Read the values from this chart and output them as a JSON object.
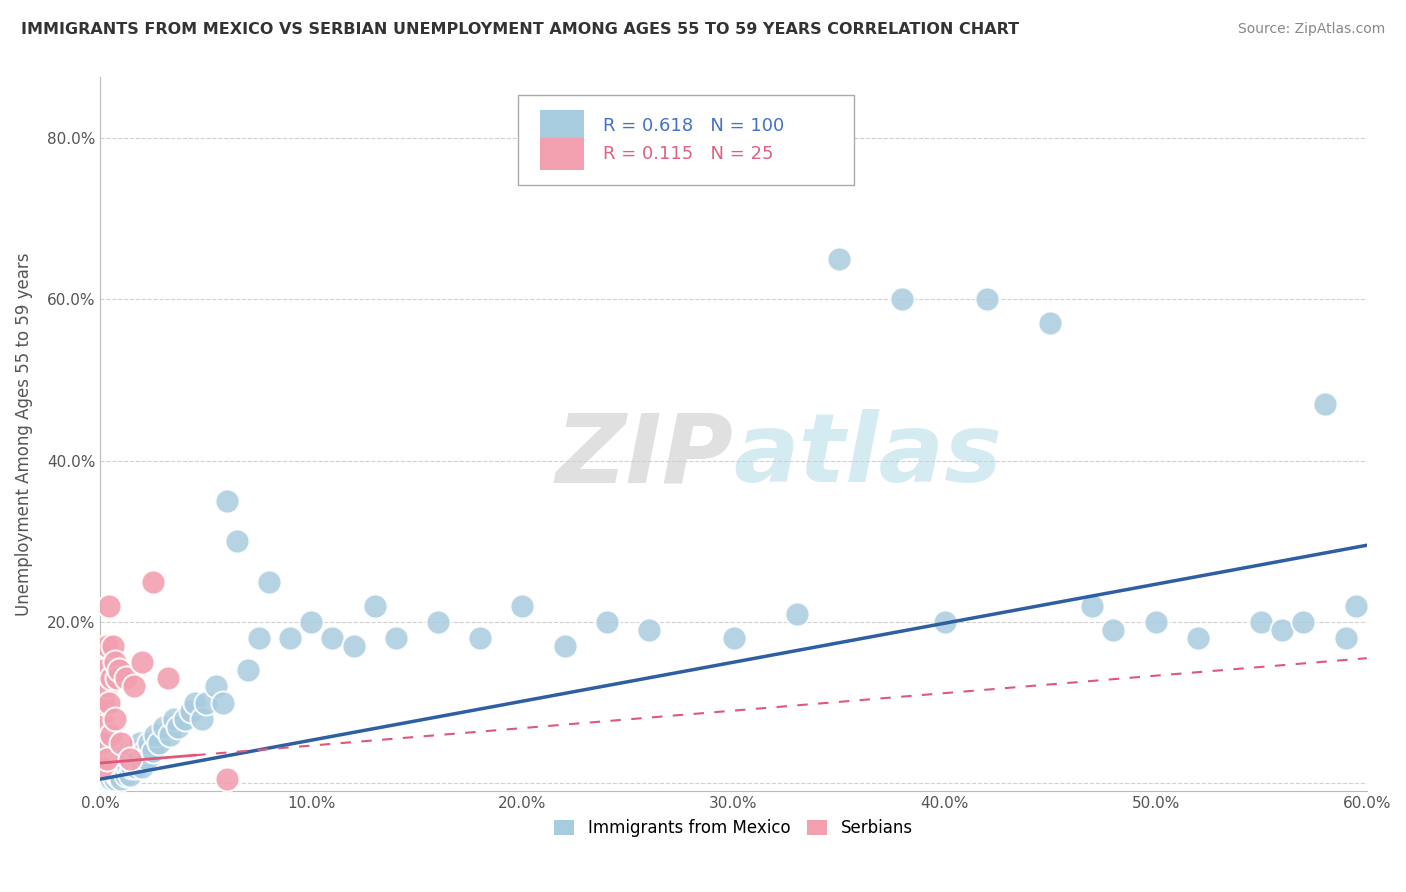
{
  "title": "IMMIGRANTS FROM MEXICO VS SERBIAN UNEMPLOYMENT AMONG AGES 55 TO 59 YEARS CORRELATION CHART",
  "source": "Source: ZipAtlas.com",
  "ylabel": "Unemployment Among Ages 55 to 59 years",
  "legend_label1": "Immigrants from Mexico",
  "legend_label2": "Serbians",
  "R1": 0.618,
  "N1": 100,
  "R2": 0.115,
  "N2": 25,
  "xlim": [
    0.0,
    0.6
  ],
  "ylim": [
    -0.01,
    0.875
  ],
  "xticks": [
    0.0,
    0.1,
    0.2,
    0.3,
    0.4,
    0.5,
    0.6
  ],
  "yticks": [
    0.0,
    0.2,
    0.4,
    0.6,
    0.8
  ],
  "xticklabels": [
    "0.0%",
    "10.0%",
    "20.0%",
    "30.0%",
    "40.0%",
    "50.0%",
    "60.0%"
  ],
  "yticklabels": [
    "",
    "20.0%",
    "40.0%",
    "60.0%",
    "80.0%"
  ],
  "color1": "#A8CCDF",
  "color2": "#F2A0B0",
  "trendline1_color": "#2E5FA3",
  "trendline2_color": "#E05878",
  "background_color": "#FFFFFF",
  "grid_color": "#CCCCCC",
  "watermark_zip": "ZIP",
  "watermark_atlas": "atlas",
  "trendline1_x0": 0.0,
  "trendline1_y0": 0.005,
  "trendline1_x1": 0.6,
  "trendline1_y1": 0.295,
  "trendline2_x0": 0.0,
  "trendline2_y0": 0.025,
  "trendline2_x1": 0.6,
  "trendline2_y1": 0.155,
  "trendline2_solid_x1": 0.045,
  "trendline2_solid_y1": 0.085,
  "scatter1_x": [
    0.001,
    0.001,
    0.001,
    0.002,
    0.002,
    0.002,
    0.002,
    0.002,
    0.003,
    0.003,
    0.003,
    0.003,
    0.003,
    0.004,
    0.004,
    0.004,
    0.004,
    0.005,
    0.005,
    0.005,
    0.005,
    0.006,
    0.006,
    0.006,
    0.007,
    0.007,
    0.007,
    0.008,
    0.008,
    0.008,
    0.009,
    0.009,
    0.01,
    0.01,
    0.01,
    0.011,
    0.011,
    0.012,
    0.012,
    0.013,
    0.013,
    0.014,
    0.014,
    0.015,
    0.016,
    0.017,
    0.018,
    0.019,
    0.02,
    0.021,
    0.022,
    0.023,
    0.025,
    0.026,
    0.028,
    0.03,
    0.033,
    0.035,
    0.037,
    0.04,
    0.043,
    0.045,
    0.048,
    0.05,
    0.055,
    0.058,
    0.06,
    0.065,
    0.07,
    0.075,
    0.08,
    0.09,
    0.1,
    0.11,
    0.12,
    0.13,
    0.14,
    0.16,
    0.18,
    0.2,
    0.22,
    0.24,
    0.26,
    0.3,
    0.33,
    0.35,
    0.38,
    0.4,
    0.42,
    0.45,
    0.47,
    0.48,
    0.5,
    0.52,
    0.55,
    0.56,
    0.57,
    0.58,
    0.59,
    0.595
  ],
  "scatter1_y": [
    0.02,
    0.03,
    0.005,
    0.01,
    0.02,
    0.03,
    0.005,
    0.04,
    0.01,
    0.02,
    0.03,
    0.005,
    0.04,
    0.02,
    0.03,
    0.005,
    0.01,
    0.02,
    0.03,
    0.01,
    0.005,
    0.02,
    0.04,
    0.01,
    0.02,
    0.03,
    0.005,
    0.01,
    0.03,
    0.02,
    0.01,
    0.04,
    0.02,
    0.03,
    0.005,
    0.02,
    0.04,
    0.01,
    0.03,
    0.02,
    0.04,
    0.01,
    0.03,
    0.02,
    0.04,
    0.02,
    0.03,
    0.05,
    0.02,
    0.04,
    0.03,
    0.05,
    0.04,
    0.06,
    0.05,
    0.07,
    0.06,
    0.08,
    0.07,
    0.08,
    0.09,
    0.1,
    0.08,
    0.1,
    0.12,
    0.1,
    0.35,
    0.3,
    0.14,
    0.18,
    0.25,
    0.18,
    0.2,
    0.18,
    0.17,
    0.22,
    0.18,
    0.2,
    0.18,
    0.22,
    0.17,
    0.2,
    0.19,
    0.18,
    0.21,
    0.65,
    0.6,
    0.2,
    0.6,
    0.57,
    0.22,
    0.19,
    0.2,
    0.18,
    0.2,
    0.19,
    0.2,
    0.47,
    0.18,
    0.22
  ],
  "scatter2_x": [
    0.001,
    0.001,
    0.001,
    0.002,
    0.002,
    0.003,
    0.003,
    0.003,
    0.004,
    0.004,
    0.005,
    0.005,
    0.006,
    0.007,
    0.007,
    0.008,
    0.009,
    0.01,
    0.012,
    0.014,
    0.016,
    0.02,
    0.025,
    0.032,
    0.06
  ],
  "scatter2_y": [
    0.02,
    0.05,
    0.08,
    0.1,
    0.14,
    0.12,
    0.17,
    0.03,
    0.22,
    0.1,
    0.13,
    0.06,
    0.17,
    0.15,
    0.08,
    0.13,
    0.14,
    0.05,
    0.13,
    0.03,
    0.12,
    0.15,
    0.25,
    0.13,
    0.005
  ]
}
